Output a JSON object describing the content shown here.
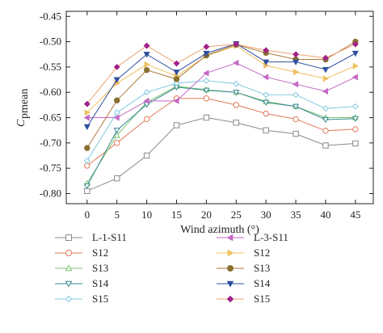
{
  "chart_data": {
    "type": "line",
    "title": "",
    "xlabel": "Wind azimuth (°)",
    "ylabel_main": "C",
    "ylabel_sub": "pmean",
    "x": [
      0,
      5,
      10,
      15,
      20,
      25,
      30,
      35,
      40,
      45
    ],
    "xlim": [
      -3.5,
      48
    ],
    "ylim": [
      -0.82,
      -0.44
    ],
    "xticks": [
      0,
      5,
      10,
      15,
      20,
      25,
      30,
      35,
      40,
      45
    ],
    "yticks": [
      -0.45,
      -0.5,
      -0.55,
      -0.6,
      -0.65,
      -0.7,
      -0.75,
      -0.8
    ],
    "ytick_labels": [
      "-0.45",
      "-0.50",
      "-0.55",
      "-0.60",
      "-0.65",
      "-0.70",
      "-0.75",
      "-0.80"
    ],
    "grid": false,
    "legend_position": "bottom",
    "series": [
      {
        "name": "L-1-S11",
        "color": "#8a8a8a",
        "marker": "square",
        "values": [
          -0.795,
          -0.77,
          -0.725,
          -0.665,
          -0.65,
          -0.66,
          -0.675,
          -0.682,
          -0.705,
          -0.701
        ]
      },
      {
        "name": "S12",
        "color": "#e07a5a",
        "marker": "circle",
        "values": [
          -0.745,
          -0.7,
          -0.653,
          -0.612,
          -0.612,
          -0.625,
          -0.642,
          -0.653,
          -0.676,
          -0.673
        ]
      },
      {
        "name": "S13",
        "color": "#7cc470",
        "marker": "triangle-up",
        "values": [
          -0.78,
          -0.685,
          -0.62,
          -0.588,
          -0.595,
          -0.6,
          -0.618,
          -0.628,
          -0.65,
          -0.65
        ]
      },
      {
        "name": "S14",
        "color": "#3a8a96",
        "marker": "triangle-down",
        "values": [
          -0.785,
          -0.675,
          -0.624,
          -0.59,
          -0.596,
          -0.6,
          -0.62,
          -0.628,
          -0.654,
          -0.652
        ]
      },
      {
        "name": "S15",
        "color": "#80c8de",
        "marker": "diamond",
        "values": [
          -0.735,
          -0.64,
          -0.6,
          -0.582,
          -0.577,
          -0.583,
          -0.605,
          -0.605,
          -0.632,
          -0.628
        ]
      },
      {
        "name": "L-3-S11",
        "color": "#c46ac4",
        "marker": "triangle-left",
        "values": [
          -0.65,
          -0.65,
          -0.617,
          -0.617,
          -0.562,
          -0.542,
          -0.57,
          -0.584,
          -0.598,
          -0.57
        ]
      },
      {
        "name": "S12",
        "color": "#f0c060",
        "marker": "triangle-right",
        "values": [
          -0.64,
          -0.582,
          -0.545,
          -0.568,
          -0.528,
          -0.508,
          -0.547,
          -0.56,
          -0.573,
          -0.548
        ]
      },
      {
        "name": "S13",
        "color": "#8a7030",
        "marker": "circle",
        "values": [
          -0.71,
          -0.616,
          -0.556,
          -0.574,
          -0.527,
          -0.506,
          -0.522,
          -0.535,
          -0.535,
          -0.5
        ]
      },
      {
        "name": "S14",
        "color": "#3050a0",
        "marker": "triangle-down",
        "values": [
          -0.668,
          -0.575,
          -0.525,
          -0.56,
          -0.523,
          -0.504,
          -0.54,
          -0.54,
          -0.555,
          -0.523
        ]
      },
      {
        "name": "S15",
        "color": "#a0208a",
        "marker": "diamond",
        "values": [
          -0.623,
          -0.55,
          -0.508,
          -0.543,
          -0.51,
          -0.505,
          -0.517,
          -0.525,
          -0.532,
          -0.505
        ]
      }
    ]
  },
  "styles": {
    "series_line_colors": [
      "#8a8a8a",
      "#e07a5a",
      "#7cc470",
      "#3a8a96",
      "#80c8de",
      "#c46ac4",
      "#f0c060",
      "#b07a3a",
      "#3050a0",
      "#f0a070"
    ],
    "filled_markers": [
      false,
      false,
      false,
      false,
      false,
      true,
      true,
      true,
      true,
      true
    ]
  }
}
